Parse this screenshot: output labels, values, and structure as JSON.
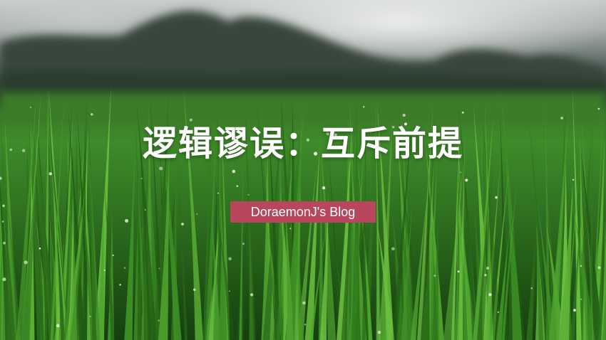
{
  "cover": {
    "title": "逻辑谬误：互斥前提",
    "badge": "DoraemonJ's Blog"
  },
  "colors": {
    "badge_background": "#b8475e",
    "title_text": "#ffffff",
    "grass": "#3f8a2a"
  }
}
